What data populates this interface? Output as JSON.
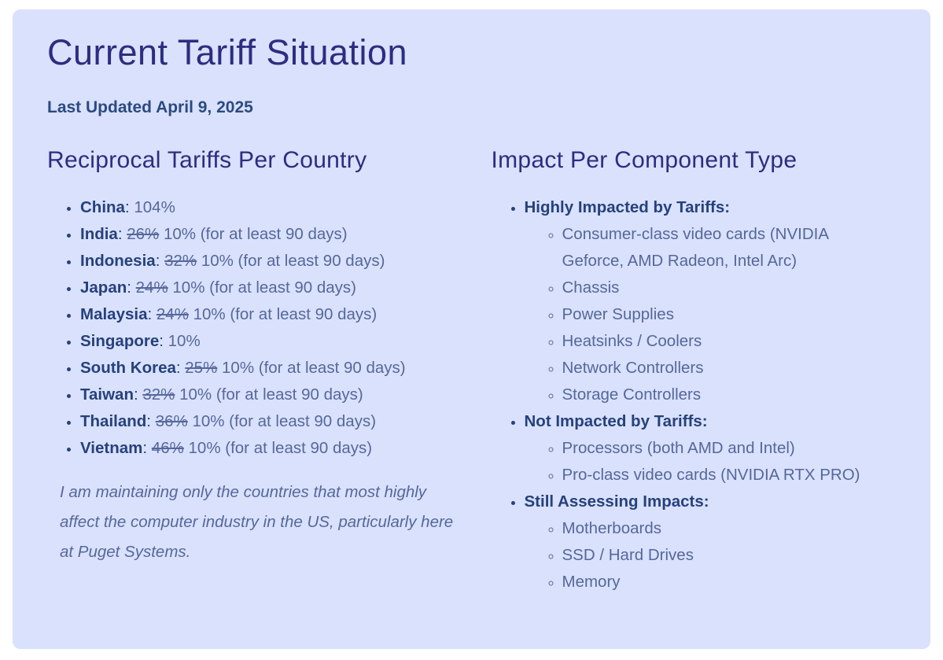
{
  "colors": {
    "card_bg": "#d9e1fc",
    "heading": "#2c2d80",
    "meta": "#2c4a80",
    "strong": "#26417c",
    "body_text": "#56679b"
  },
  "header": {
    "title": "Current Tariff Situation",
    "last_updated": "Last Updated April 9, 2025"
  },
  "tariffs": {
    "heading": "Reciprocal Tariffs Per Country",
    "separator": ":",
    "items": [
      {
        "country": "China",
        "previous": "",
        "current": "104%"
      },
      {
        "country": "India",
        "previous": "26%",
        "current": "10% (for at least 90 days)"
      },
      {
        "country": "Indonesia",
        "previous": "32%",
        "current": "10% (for at least 90 days)"
      },
      {
        "country": "Japan",
        "previous": "24%",
        "current": "10% (for at least 90 days)"
      },
      {
        "country": "Malaysia",
        "previous": "24%",
        "current": "10% (for at least 90 days)"
      },
      {
        "country": "Singapore",
        "previous": "",
        "current": "10%"
      },
      {
        "country": "South Korea",
        "previous": "25%",
        "current": "10% (for at least 90 days)"
      },
      {
        "country": "Taiwan",
        "previous": "32%",
        "current": "10% (for at least 90 days)"
      },
      {
        "country": "Thailand",
        "previous": "36%",
        "current": "10% (for at least 90 days)"
      },
      {
        "country": "Vietnam",
        "previous": "46%",
        "current": "10% (for at least 90 days)"
      }
    ],
    "note": "I am maintaining only the countries that most highly affect the computer industry in the US, particularly here at Puget Systems."
  },
  "impact": {
    "heading": "Impact Per Component Type",
    "groups": [
      {
        "label": "Highly Impacted by Tariffs:",
        "items": [
          "Consumer-class video cards (NVIDIA Geforce, AMD Radeon, Intel Arc)",
          "Chassis",
          "Power Supplies",
          "Heatsinks / Coolers",
          "Network Controllers",
          "Storage Controllers"
        ]
      },
      {
        "label": "Not Impacted by Tariffs:",
        "items": [
          "Processors (both AMD and Intel)",
          "Pro-class video cards (NVIDIA RTX PRO)"
        ]
      },
      {
        "label": "Still Assessing Impacts:",
        "items": [
          "Motherboards",
          "SSD / Hard Drives",
          "Memory"
        ]
      }
    ]
  }
}
